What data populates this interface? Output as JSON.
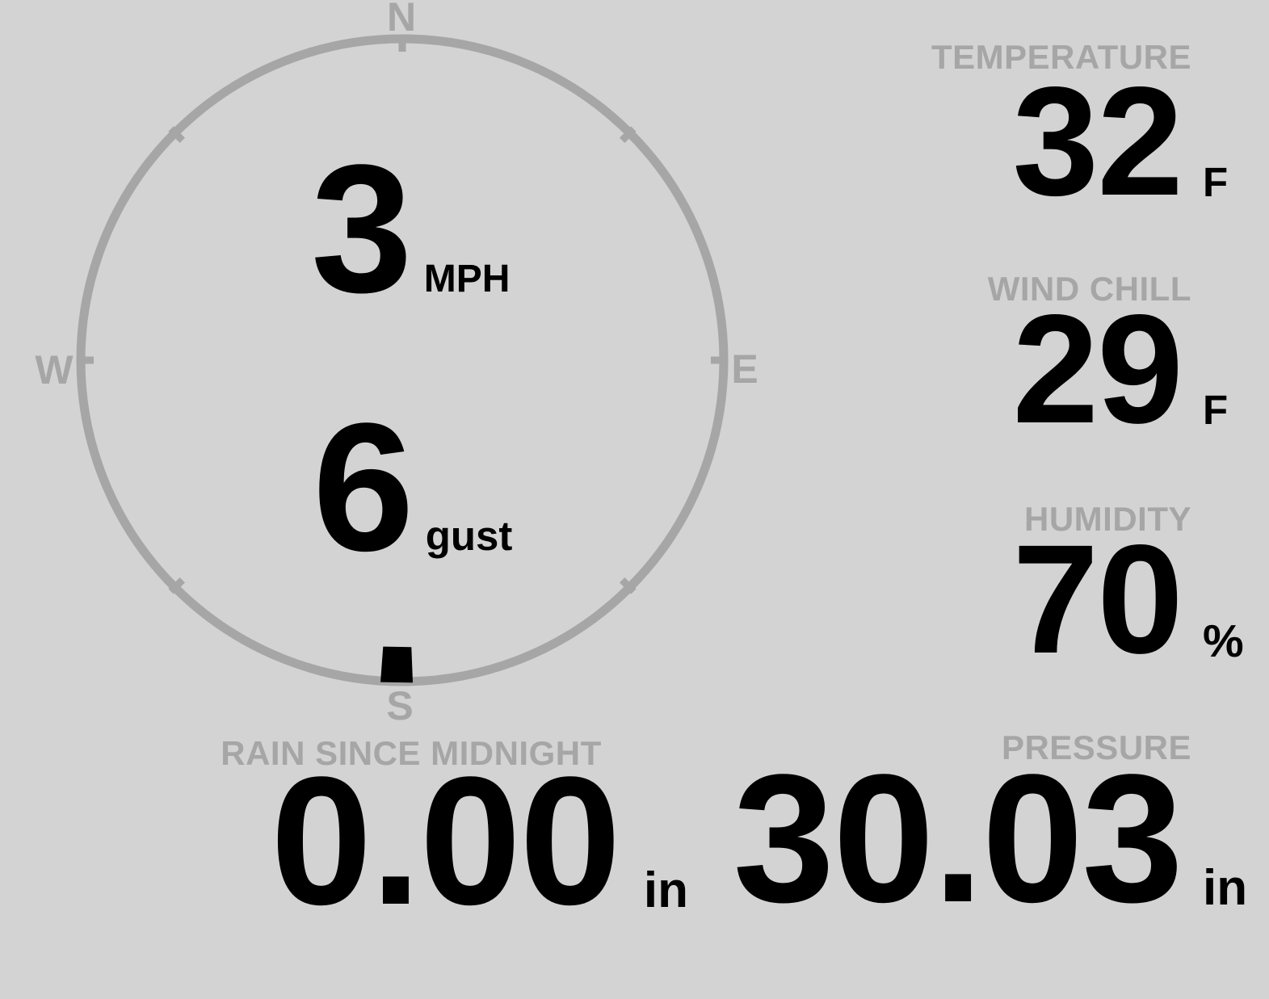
{
  "theme": {
    "background": "#d3d3d3",
    "muted": "#a6a6a6",
    "ink": "#000000"
  },
  "compass": {
    "cardinal_labels": {
      "north": "N",
      "east": "E",
      "south": "S",
      "west": "W"
    },
    "wind_speed": {
      "value": "3",
      "unit": "MPH"
    },
    "wind_gust": {
      "value": "6",
      "unit": "gust"
    },
    "wind_direction_deg": 181
  },
  "stats": {
    "temperature": {
      "label": "TEMPERATURE",
      "value": "32",
      "unit": "F"
    },
    "wind_chill": {
      "label": "WIND CHILL",
      "value": "29",
      "unit": "F"
    },
    "humidity": {
      "label": "HUMIDITY",
      "value": "70",
      "unit": "%"
    },
    "rain": {
      "label": "RAIN SINCE MIDNIGHT",
      "value": "0.00",
      "unit": "in"
    },
    "pressure": {
      "label": "PRESSURE",
      "value": "30.03",
      "unit": "in"
    }
  }
}
